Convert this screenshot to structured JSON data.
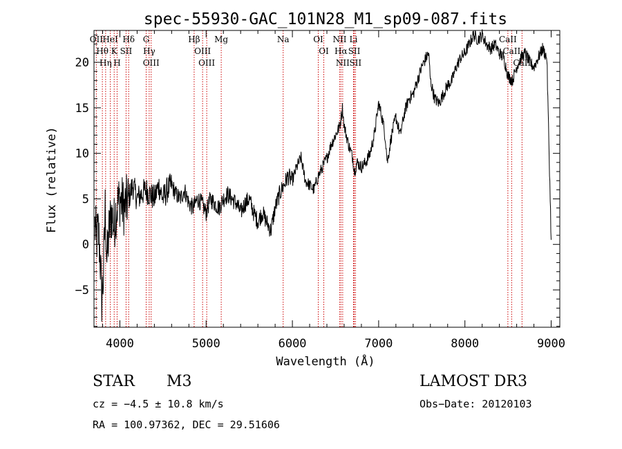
{
  "chart_data": {
    "type": "line",
    "title": "spec-55930-GAC_101N28_M1_sp09-087.fits",
    "xlabel": "Wavelength (Å)",
    "ylabel": "Flux (relative)",
    "xlim": [
      3700,
      9100
    ],
    "ylim": [
      -9.1,
      23.5
    ],
    "xticks": [
      4000,
      5000,
      6000,
      7000,
      8000,
      9000
    ],
    "yticks": [
      -5,
      0,
      5,
      10,
      15,
      20
    ],
    "grid": false,
    "series": [
      {
        "name": "flux",
        "x": [
          3710,
          3730,
          3750,
          3770,
          3790,
          3810,
          3830,
          3850,
          3870,
          3900,
          3930,
          3960,
          4000,
          4050,
          4100,
          4150,
          4200,
          4250,
          4300,
          4350,
          4400,
          4450,
          4500,
          4550,
          4600,
          4650,
          4700,
          4750,
          4800,
          4850,
          4900,
          4950,
          5000,
          5050,
          5100,
          5150,
          5200,
          5250,
          5300,
          5350,
          5400,
          5450,
          5500,
          5550,
          5600,
          5650,
          5700,
          5750,
          5800,
          5850,
          5900,
          5950,
          6000,
          6050,
          6100,
          6150,
          6200,
          6250,
          6300,
          6350,
          6400,
          6450,
          6500,
          6550,
          6580,
          6600,
          6650,
          6700,
          6720,
          6750,
          6800,
          6850,
          6900,
          6950,
          7000,
          7050,
          7080,
          7100,
          7150,
          7200,
          7250,
          7300,
          7350,
          7400,
          7450,
          7500,
          7550,
          7580,
          7600,
          7650,
          7700,
          7750,
          7800,
          7850,
          7900,
          7950,
          8000,
          8050,
          8100,
          8150,
          8200,
          8250,
          8300,
          8350,
          8400,
          8450,
          8500,
          8550,
          8600,
          8650,
          8700,
          8750,
          8800,
          8850,
          8900,
          8950,
          9000
        ],
        "y": [
          2.0,
          0.5,
          1.5,
          -1.0,
          -6.0,
          -3.5,
          4.0,
          -2.0,
          1.0,
          3.5,
          2.0,
          4.0,
          5.0,
          4.0,
          5.0,
          6.5,
          5.0,
          5.5,
          6.0,
          5.5,
          5.0,
          6.5,
          5.0,
          6.0,
          6.5,
          5.5,
          5.0,
          6.0,
          4.5,
          4.0,
          5.0,
          4.5,
          3.5,
          5.0,
          4.5,
          4.0,
          5.0,
          5.5,
          5.0,
          4.5,
          3.5,
          4.5,
          5.0,
          3.5,
          2.5,
          3.5,
          2.5,
          1.5,
          4.0,
          5.5,
          6.5,
          7.5,
          7.0,
          8.5,
          9.5,
          7.0,
          6.5,
          6.0,
          7.5,
          8.5,
          9.5,
          11.0,
          12.0,
          13.0,
          15.0,
          13.0,
          11.0,
          9.5,
          8.0,
          9.0,
          8.5,
          9.0,
          10.0,
          12.0,
          15.5,
          13.5,
          11.5,
          9.0,
          12.0,
          14.0,
          12.0,
          14.5,
          16.0,
          16.5,
          18.0,
          19.5,
          20.5,
          21.0,
          18.0,
          16.0,
          15.5,
          16.5,
          17.5,
          18.0,
          19.5,
          20.5,
          21.0,
          22.0,
          23.0,
          22.5,
          23.0,
          22.0,
          21.5,
          22.0,
          21.0,
          20.5,
          18.5,
          18.0,
          19.5,
          20.5,
          21.0,
          20.0,
          19.5,
          20.5,
          21.5,
          20.5,
          0.5
        ]
      }
    ],
    "lines": [
      {
        "label": "Hθ",
        "wl": 3797
      },
      {
        "label": "OII",
        "wl": 3727
      },
      {
        "label": "Hη",
        "wl": 3835
      },
      {
        "label": "HeI",
        "wl": 3889
      },
      {
        "label": "K",
        "wl": 3934
      },
      {
        "label": "H",
        "wl": 3968
      },
      {
        "label": "SII",
        "wl": 4072
      },
      {
        "label": "Hδ",
        "wl": 4102
      },
      {
        "label": "OIII",
        "wl": 4363
      },
      {
        "label": "Hγ",
        "wl": 4340
      },
      {
        "label": "G",
        "wl": 4305
      },
      {
        "label": "Hβ",
        "wl": 4861
      },
      {
        "label": "OIII",
        "wl": 4959
      },
      {
        "label": "OIII",
        "wl": 5007
      },
      {
        "label": "Mg",
        "wl": 5175
      },
      {
        "label": "Na",
        "wl": 5893
      },
      {
        "label": "OI",
        "wl": 6300
      },
      {
        "label": "OI",
        "wl": 6364
      },
      {
        "label": "Hα",
        "wl": 6563
      },
      {
        "label": "NII",
        "wl": 6548
      },
      {
        "label": "NII",
        "wl": 6583
      },
      {
        "label": "SII",
        "wl": 6717
      },
      {
        "label": "SII",
        "wl": 6731
      },
      {
        "label": "Li",
        "wl": 6708
      },
      {
        "label": "CaII",
        "wl": 8498
      },
      {
        "label": "CaII",
        "wl": 8542
      },
      {
        "label": "CaII",
        "wl": 8662
      }
    ]
  },
  "info": {
    "class": "STAR",
    "subclass": "M3",
    "survey": "LAMOST DR3",
    "cz": "cz = −4.5 ± 10.8 km/s",
    "obs_date": "Obs−Date: 20120103",
    "radec": "RA = 100.97362, DEC =  29.51606"
  },
  "colors": {
    "axis": "#000000",
    "spectrum": "#000000",
    "line_markers": "#cc0000"
  }
}
